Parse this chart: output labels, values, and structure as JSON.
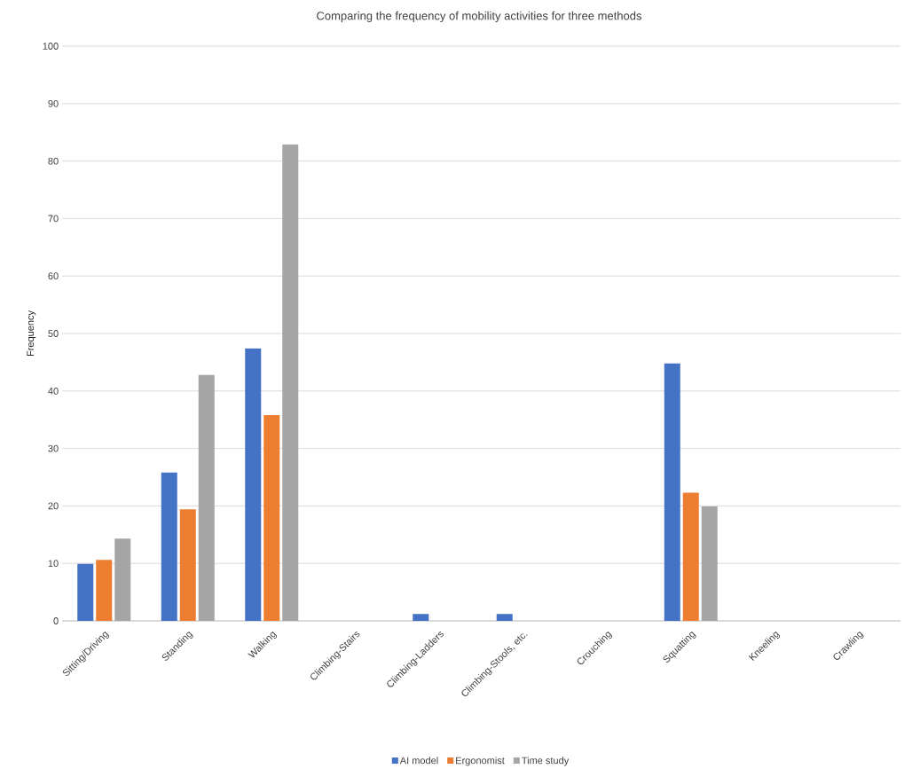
{
  "chart_data": {
    "type": "bar",
    "title": "Comparing the frequency of mobility activities for three methods",
    "ylabel": "Frequency",
    "categories": [
      "Sitting/Driving",
      "Standing",
      "Walking",
      "Climbing-Stairs",
      "Climbing-Ladders",
      "Climbing-Stools, etc.",
      "Crouching",
      "Squatting",
      "Kneeling",
      "Crawling"
    ],
    "series": [
      {
        "name": "AI model",
        "color": "#4472c4",
        "values": [
          9.9,
          25.8,
          47.4,
          0,
          1.2,
          1.2,
          0,
          44.8,
          0,
          0
        ]
      },
      {
        "name": "Ergonomist",
        "color": "#ed7d31",
        "values": [
          10.6,
          19.4,
          35.8,
          0,
          0,
          0,
          0,
          22.3,
          0,
          0
        ]
      },
      {
        "name": "Time study",
        "color": "#a5a5a5",
        "values": [
          14.3,
          42.8,
          82.9,
          0,
          0,
          0,
          0,
          19.9,
          0,
          0
        ]
      }
    ],
    "ylim": [
      0,
      100
    ],
    "yticks": [
      0,
      10,
      20,
      30,
      40,
      50,
      60,
      70,
      80,
      90,
      100
    ],
    "grid": "y",
    "legend": "bottom"
  }
}
